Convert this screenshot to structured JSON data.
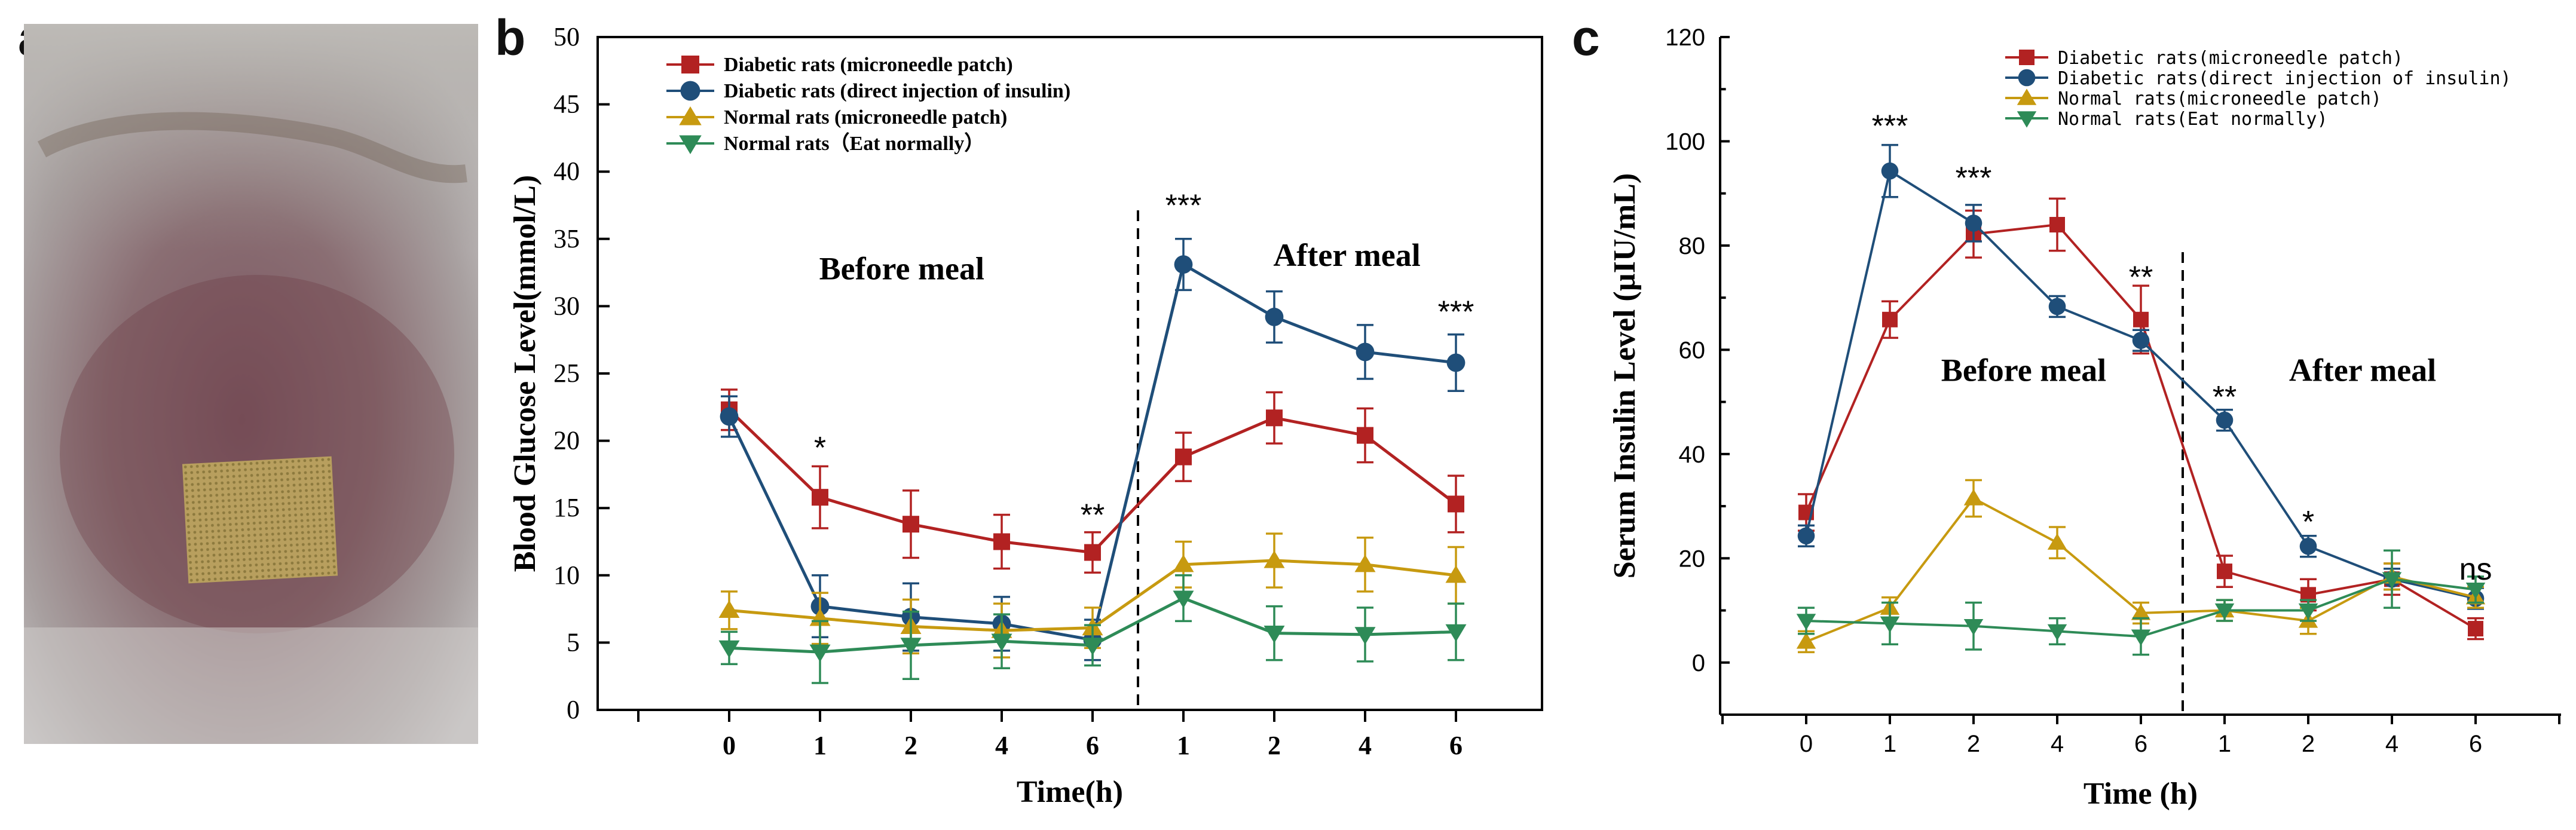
{
  "panels": {
    "a": {
      "letter": "a"
    },
    "b": {
      "letter": "b"
    },
    "c": {
      "letter": "c"
    }
  },
  "series_style": [
    {
      "color": "#b22222",
      "marker": "square"
    },
    {
      "color": "#1f4e79",
      "marker": "circle"
    },
    {
      "color": "#c79a10",
      "marker": "triangle-up"
    },
    {
      "color": "#2e8b57",
      "marker": "triangle-down"
    }
  ],
  "chart_data": [
    {
      "panel": "b",
      "type": "line",
      "title": "",
      "xlabel": "Time(h)",
      "ylabel": "Blood  Glucose Level(mmol/L)",
      "ylim": [
        0,
        50
      ],
      "yticks": [
        0,
        5,
        10,
        15,
        20,
        25,
        30,
        35,
        40,
        45,
        50
      ],
      "categories": [
        "0",
        "1",
        "2",
        "4",
        "6",
        "1",
        "2",
        "4",
        "6"
      ],
      "legend_position": "top-left",
      "series": [
        {
          "name": "Diabetic rats (microneedle patch)",
          "values": [
            22.3,
            15.8,
            13.8,
            12.5,
            11.7,
            18.8,
            21.7,
            20.4,
            15.3
          ],
          "errors": [
            1.5,
            2.3,
            2.5,
            2.0,
            1.5,
            1.8,
            1.9,
            2.0,
            2.1
          ]
        },
        {
          "name": "Diabetic rats (direct injection of insulin)",
          "values": [
            21.8,
            7.7,
            6.9,
            6.4,
            5.2,
            33.1,
            29.2,
            26.6,
            25.8
          ],
          "errors": [
            1.5,
            2.3,
            2.5,
            2.0,
            1.5,
            1.9,
            1.9,
            2.0,
            2.1
          ]
        },
        {
          "name": "Normal rats (microneedle patch)",
          "values": [
            7.4,
            6.8,
            6.2,
            5.9,
            6.1,
            10.8,
            11.1,
            10.8,
            10.0
          ],
          "errors": [
            1.4,
            1.9,
            2.0,
            2.0,
            1.5,
            1.7,
            2.0,
            2.0,
            2.1
          ]
        },
        {
          "name": "Normal rats（Eat normally）",
          "values": [
            4.6,
            4.3,
            4.8,
            5.1,
            4.8,
            8.3,
            5.7,
            5.6,
            5.8
          ],
          "errors": [
            1.2,
            2.3,
            2.5,
            2.0,
            1.5,
            1.7,
            2.0,
            2.0,
            2.1
          ]
        }
      ],
      "annotations": [
        {
          "text": "*",
          "category_index": 1,
          "y": 19.5
        },
        {
          "text": "**",
          "category_index": 4,
          "y": 14.5
        },
        {
          "text": "***",
          "category_index": 5,
          "y": 37.5
        },
        {
          "text": "***",
          "category_index": 8,
          "y": 29.6
        }
      ],
      "region_labels": [
        {
          "text": "Before meal",
          "category_position": 1.9,
          "y": 32
        },
        {
          "text": "After meal",
          "category_position": 6.8,
          "y": 33
        }
      ],
      "divider_position": 4.5
    },
    {
      "panel": "c",
      "type": "line",
      "title": "",
      "xlabel": "Time (h)",
      "ylabel": "Serum Insulin Level (µIU/mL)",
      "ylim": [
        -10,
        120
      ],
      "yticks": [
        0,
        20,
        40,
        60,
        80,
        100,
        120
      ],
      "categories": [
        "0",
        "1",
        "2",
        "4",
        "6",
        "1",
        "2",
        "4",
        "6"
      ],
      "legend_position": "top-right",
      "series": [
        {
          "name": "Diabetic rats(microneedle patch)",
          "values": [
            28.8,
            65.8,
            82.2,
            84.0,
            65.8,
            17.5,
            13.0,
            16.0,
            6.5
          ],
          "errors": [
            3.5,
            3.5,
            4.5,
            5.0,
            6.5,
            3.0,
            3.0,
            3.0,
            2.0
          ]
        },
        {
          "name": "Diabetic rats(direct injection of insulin)",
          "values": [
            24.3,
            94.3,
            84.3,
            68.3,
            61.8,
            46.5,
            22.3,
            16.0,
            12.3
          ],
          "errors": [
            2.0,
            5.0,
            3.5,
            2.0,
            2.0,
            2.0,
            2.0,
            2.0,
            2.0
          ]
        },
        {
          "name": "Normal rats(microneedle patch)",
          "values": [
            4.0,
            10.5,
            31.5,
            23.0,
            9.5,
            10.0,
            8.0,
            16.5,
            12.5
          ],
          "errors": [
            2.0,
            2.0,
            3.5,
            3.0,
            2.0,
            2.0,
            2.5,
            2.5,
            2.0
          ]
        },
        {
          "name": "Normal rats(Eat normally)",
          "values": [
            8.0,
            7.5,
            7.0,
            6.0,
            5.0,
            10.0,
            10.0,
            16.0,
            14.0
          ],
          "errors": [
            2.5,
            4.0,
            4.5,
            2.5,
            3.5,
            2.0,
            2.0,
            5.5,
            2.5
          ]
        }
      ],
      "annotations": [
        {
          "text": "***",
          "category_index": 1,
          "y": 103
        },
        {
          "text": "***",
          "category_index": 2,
          "y": 93
        },
        {
          "text": "**",
          "category_index": 4,
          "y": 74
        },
        {
          "text": "**",
          "category_index": 5,
          "y": 51
        },
        {
          "text": "*",
          "category_index": 6,
          "y": 27
        },
        {
          "text": "ns",
          "category_index": 8,
          "y": 18
        }
      ],
      "region_labels": [
        {
          "text": "Before meal",
          "category_position": 2.6,
          "y": 54
        },
        {
          "text": "After meal",
          "category_position": 6.65,
          "y": 54
        }
      ],
      "divider_position": 4.5
    }
  ]
}
